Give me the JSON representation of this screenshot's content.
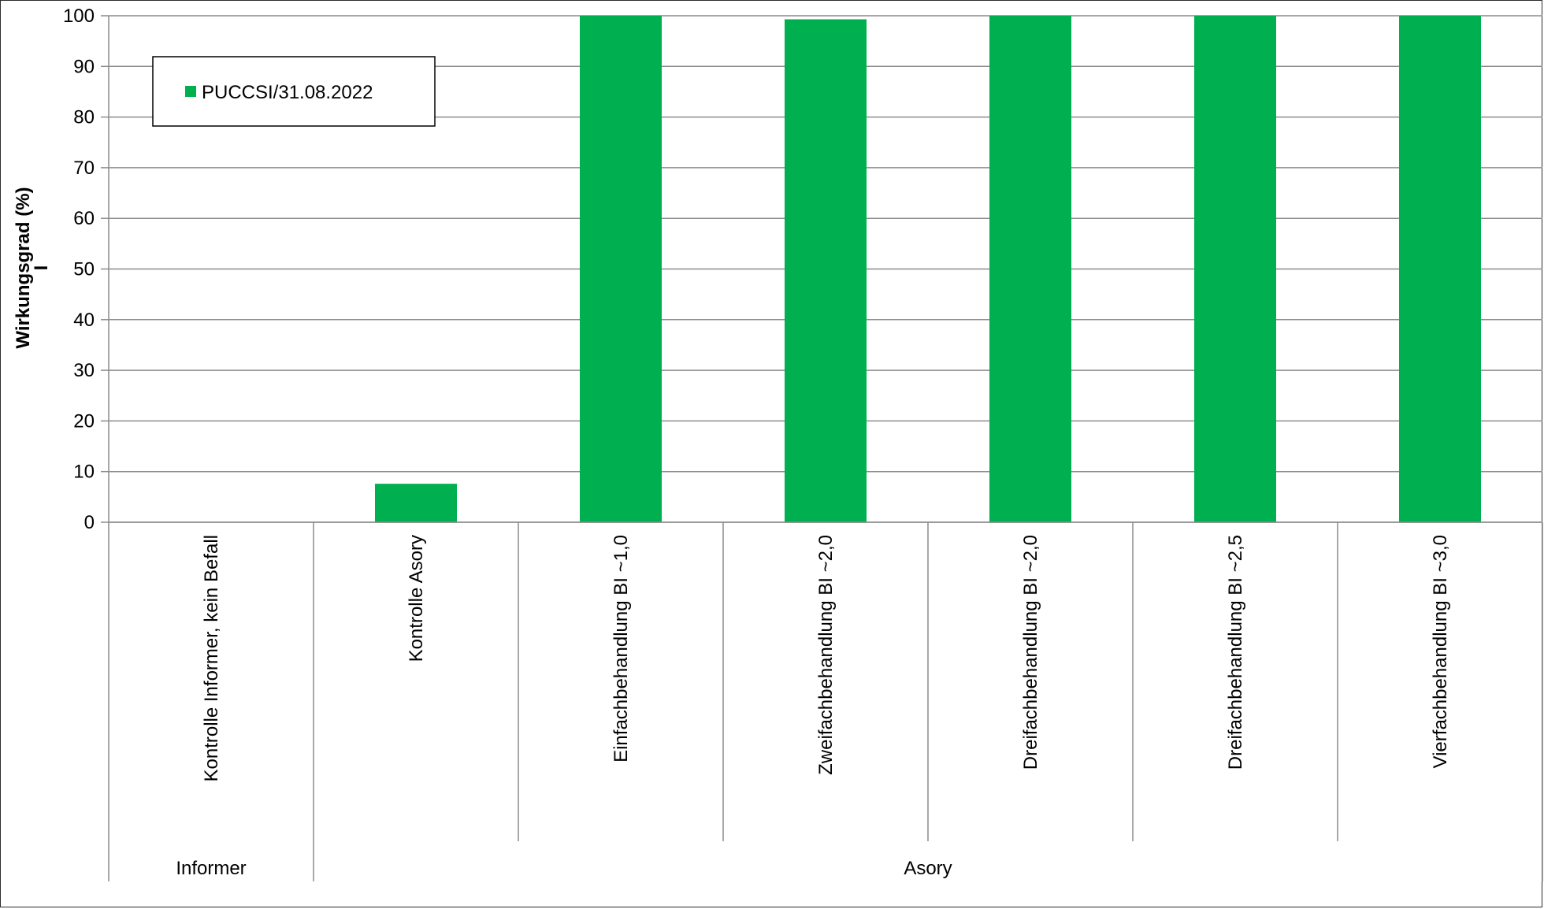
{
  "chart_data": {
    "type": "bar",
    "ylabel": "Wirkungsgrad (%)",
    "ylabel_extra": "I",
    "ylim": [
      0,
      100
    ],
    "ytick_step": 10,
    "yticks": [
      "0",
      "10",
      "20",
      "30",
      "40",
      "50",
      "60",
      "70",
      "80",
      "90",
      "100"
    ],
    "grid": "horizontal",
    "legend_position": "top-left",
    "categories": [
      "Kontrolle Informer, kein Befall",
      "Kontrolle Asory",
      "Einfachbehandlung BI ~1,0",
      "Zweifachbehandlung BI ~2,0",
      "Dreifachbehandlung BI ~2,0",
      "Dreifachbehandlung BI ~2,5",
      "Vierfachbehandlung BI ~3,0"
    ],
    "groups": [
      {
        "label": "Informer",
        "span": 1
      },
      {
        "label": "Asory",
        "span": 6
      }
    ],
    "series": [
      {
        "name": "PUCCSI/31.08.2022",
        "color": "#00b050",
        "values": [
          0,
          7.6,
          100,
          99.3,
          100,
          100,
          100
        ]
      }
    ]
  }
}
